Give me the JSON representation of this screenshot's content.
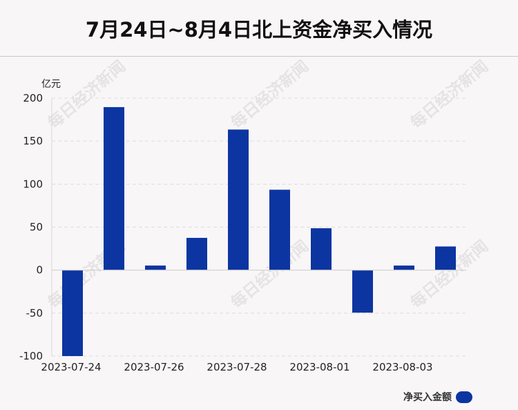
{
  "page": {
    "title": "7月24日~8月4日北上资金净买入情况",
    "watermark_text": "每日经济新闻"
  },
  "chart_data": {
    "type": "bar",
    "title": "7月24日~8月4日北上资金净买入情况",
    "ylabel": "亿元",
    "xlabel": "",
    "ylim": [
      -100,
      200
    ],
    "yticks": [
      200,
      150,
      100,
      50,
      0,
      -50,
      -100
    ],
    "grid": true,
    "legend_position": "bottom-right",
    "x_tick_labels": [
      "2023-07-24",
      "2023-07-26",
      "2023-07-28",
      "2023-08-01",
      "2023-08-03"
    ],
    "categories": [
      "2023-07-24",
      "2023-07-25",
      "2023-07-26",
      "2023-07-27",
      "2023-07-28",
      "2023-07-31",
      "2023-08-01",
      "2023-08-02",
      "2023-08-03",
      "2023-08-04"
    ],
    "series": [
      {
        "name": "净买入金额",
        "color": "#0c35a1",
        "values": [
          -100,
          189.6,
          5.3,
          37.5,
          163.5,
          93.5,
          48.7,
          -49.5,
          5.3,
          27.5
        ]
      }
    ]
  }
}
